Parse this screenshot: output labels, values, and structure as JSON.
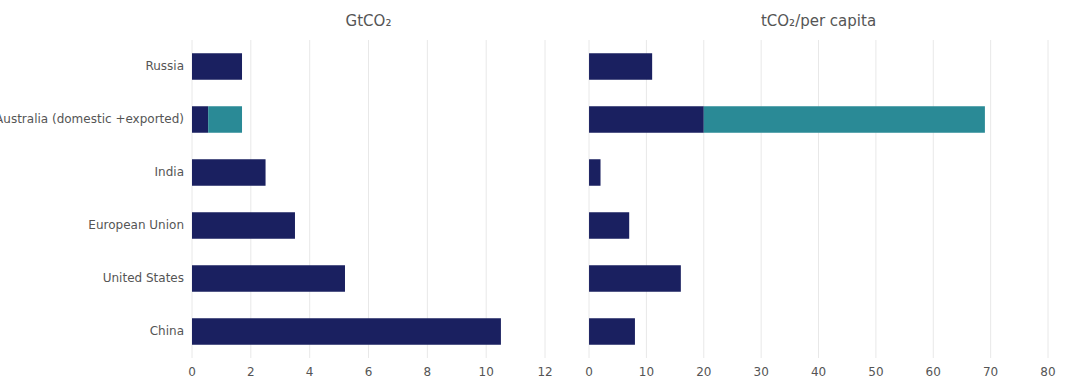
{
  "chart_data": [
    {
      "type": "bar",
      "orientation": "horizontal",
      "stacked": true,
      "grid": true,
      "title": "GtCO₂",
      "categories": [
        "Russia",
        "Australia (domestic +exported)",
        "India",
        "European Union",
        "United States",
        "China"
      ],
      "series": [
        {
          "color": "#1a2060",
          "values": [
            1.7,
            0.55,
            2.5,
            3.5,
            5.2,
            10.5
          ]
        },
        {
          "color": "#2a8a96",
          "values": [
            0.0,
            1.15,
            0.0,
            0.0,
            0.0,
            0.0
          ]
        }
      ],
      "xlim": [
        0,
        12
      ],
      "xticks": [
        0,
        2,
        4,
        6,
        8,
        10,
        12
      ]
    },
    {
      "type": "bar",
      "orientation": "horizontal",
      "stacked": true,
      "grid": true,
      "title": "tCO₂/per capita",
      "categories": [
        null,
        null,
        null,
        null,
        null,
        null
      ],
      "series": [
        {
          "color": "#1a2060",
          "values": [
            11.0,
            20.0,
            2.0,
            7.0,
            16.0,
            8.0
          ]
        },
        {
          "color": "#2a8a96",
          "values": [
            0.0,
            49.0,
            0.0,
            0.0,
            0.0,
            0.0
          ]
        }
      ],
      "xlim": [
        0,
        80
      ],
      "xticks": [
        0,
        10,
        20,
        30,
        40,
        50,
        60,
        70,
        80
      ]
    }
  ]
}
